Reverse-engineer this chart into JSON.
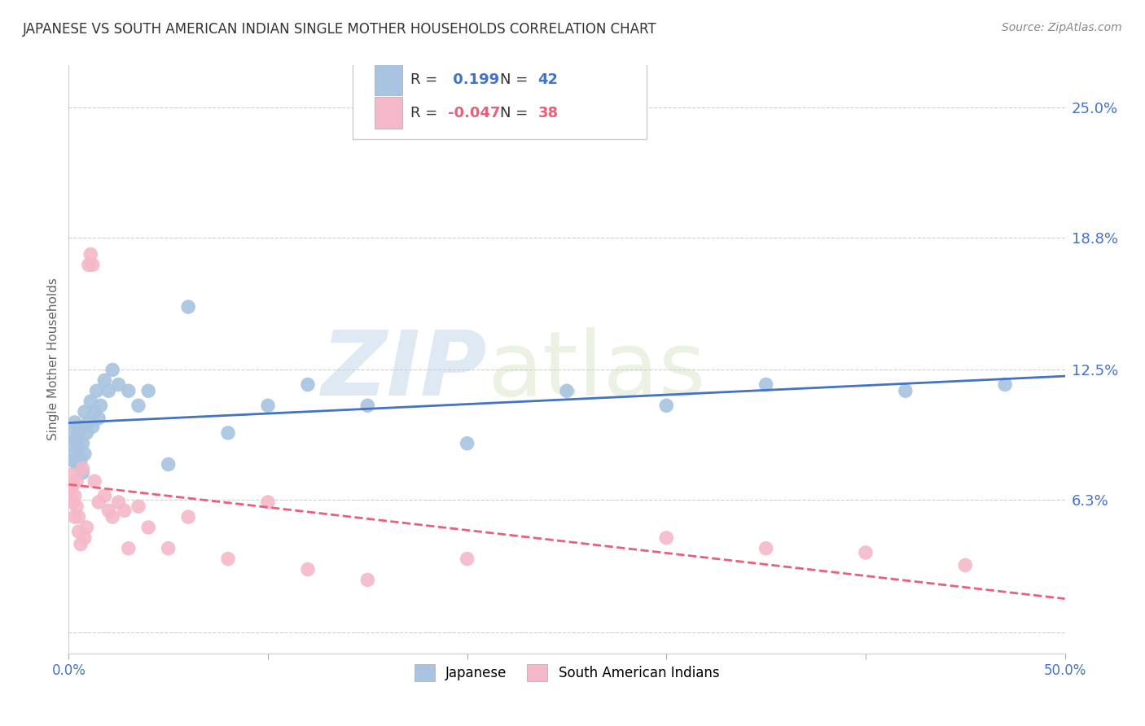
{
  "title": "JAPANESE VS SOUTH AMERICAN INDIAN SINGLE MOTHER HOUSEHOLDS CORRELATION CHART",
  "source": "Source: ZipAtlas.com",
  "xlabel": "",
  "ylabel": "Single Mother Households",
  "xlim": [
    0.0,
    0.5
  ],
  "ylim": [
    -0.01,
    0.27
  ],
  "yticks": [
    0.0,
    0.063,
    0.125,
    0.188,
    0.25
  ],
  "ytick_labels": [
    "",
    "6.3%",
    "12.5%",
    "18.8%",
    "25.0%"
  ],
  "xticks": [
    0.0,
    0.1,
    0.2,
    0.3,
    0.4,
    0.5
  ],
  "xtick_labels": [
    "0.0%",
    "",
    "",
    "",
    "",
    "50.0%"
  ],
  "watermark_part1": "ZIP",
  "watermark_part2": "atlas",
  "legend_r_japanese": " 0.199",
  "legend_n_japanese": "42",
  "legend_r_south": "-0.047",
  "legend_n_south": "38",
  "japanese_color": "#a8c4e0",
  "south_color": "#f4b8c8",
  "japanese_line_color": "#4472c4",
  "south_line_color": "#e8607a",
  "grid_color": "#d0d0d0",
  "background_color": "#ffffff",
  "japanese_x": [
    0.001,
    0.002,
    0.002,
    0.003,
    0.003,
    0.004,
    0.004,
    0.005,
    0.005,
    0.006,
    0.006,
    0.007,
    0.007,
    0.008,
    0.008,
    0.009,
    0.01,
    0.011,
    0.012,
    0.013,
    0.014,
    0.015,
    0.016,
    0.018,
    0.02,
    0.022,
    0.025,
    0.03,
    0.035,
    0.04,
    0.05,
    0.06,
    0.08,
    0.1,
    0.12,
    0.15,
    0.2,
    0.25,
    0.3,
    0.35,
    0.42,
    0.47
  ],
  "japanese_y": [
    0.09,
    0.082,
    0.095,
    0.085,
    0.1,
    0.08,
    0.092,
    0.088,
    0.095,
    0.082,
    0.098,
    0.076,
    0.09,
    0.085,
    0.105,
    0.095,
    0.1,
    0.11,
    0.098,
    0.105,
    0.115,
    0.102,
    0.108,
    0.12,
    0.115,
    0.125,
    0.118,
    0.115,
    0.108,
    0.115,
    0.08,
    0.155,
    0.095,
    0.108,
    0.118,
    0.108,
    0.09,
    0.115,
    0.108,
    0.118,
    0.115,
    0.118
  ],
  "south_x": [
    0.001,
    0.001,
    0.002,
    0.002,
    0.003,
    0.003,
    0.004,
    0.004,
    0.005,
    0.005,
    0.006,
    0.007,
    0.008,
    0.009,
    0.01,
    0.011,
    0.012,
    0.013,
    0.015,
    0.018,
    0.02,
    0.022,
    0.025,
    0.028,
    0.03,
    0.035,
    0.04,
    0.05,
    0.06,
    0.08,
    0.1,
    0.12,
    0.15,
    0.2,
    0.3,
    0.35,
    0.4,
    0.45
  ],
  "south_y": [
    0.068,
    0.075,
    0.062,
    0.07,
    0.055,
    0.065,
    0.06,
    0.072,
    0.048,
    0.055,
    0.042,
    0.078,
    0.045,
    0.05,
    0.175,
    0.18,
    0.175,
    0.072,
    0.062,
    0.065,
    0.058,
    0.055,
    0.062,
    0.058,
    0.04,
    0.06,
    0.05,
    0.04,
    0.055,
    0.035,
    0.062,
    0.03,
    0.025,
    0.035,
    0.045,
    0.04,
    0.038,
    0.032
  ]
}
